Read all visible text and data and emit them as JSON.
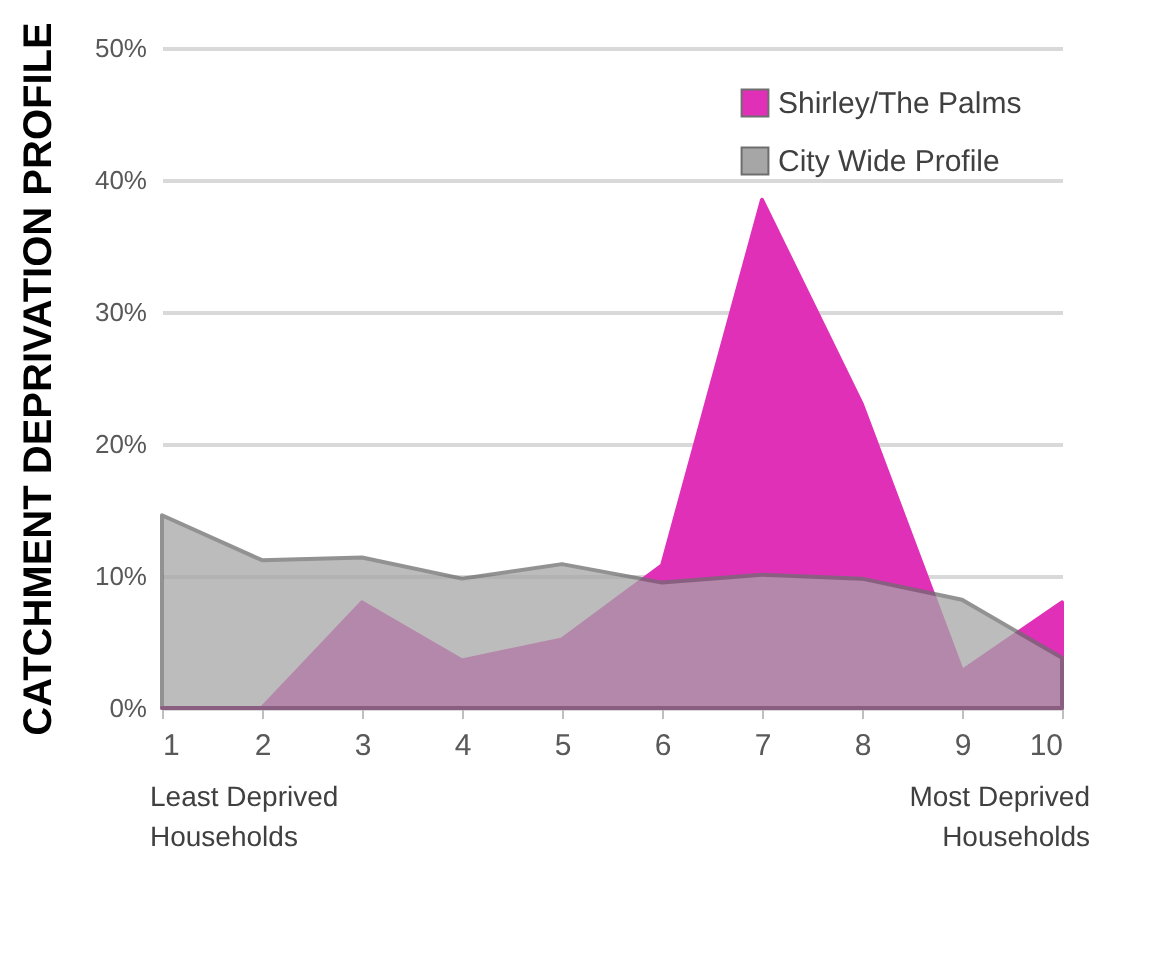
{
  "chart_data": {
    "type": "area",
    "ylabel": "CATCHMENT DEPRIVATION PROFILE",
    "x": [
      1,
      2,
      3,
      4,
      5,
      6,
      7,
      8,
      9,
      10
    ],
    "xlim": [
      1,
      10
    ],
    "xticks": [
      1,
      2,
      3,
      4,
      5,
      6,
      7,
      8,
      9,
      10
    ],
    "ylim": [
      0,
      50
    ],
    "yticks": [
      {
        "value": 0,
        "label": "0%"
      },
      {
        "value": 10,
        "label": "10%"
      },
      {
        "value": 20,
        "label": "20%"
      },
      {
        "value": 30,
        "label": "30%"
      },
      {
        "value": 40,
        "label": "40%"
      },
      {
        "value": 50,
        "label": "50%"
      }
    ],
    "series": [
      {
        "name": "Shirley/The Palms",
        "color": "#e030b8",
        "values": [
          0,
          0,
          8,
          3.6,
          5.2,
          10.8,
          38.5,
          23,
          2.8,
          8
        ]
      },
      {
        "name": "City Wide Profile",
        "color": "#a6a6a6",
        "values": [
          14.6,
          11.2,
          11.4,
          9.8,
          10.9,
          9.5,
          10.1,
          9.8,
          8.2,
          3.8
        ]
      }
    ],
    "grid": "y",
    "legend": "top right",
    "annotations": [
      "Least Deprived\nHouseholds",
      "Most Deprived\nHouseholds"
    ]
  }
}
